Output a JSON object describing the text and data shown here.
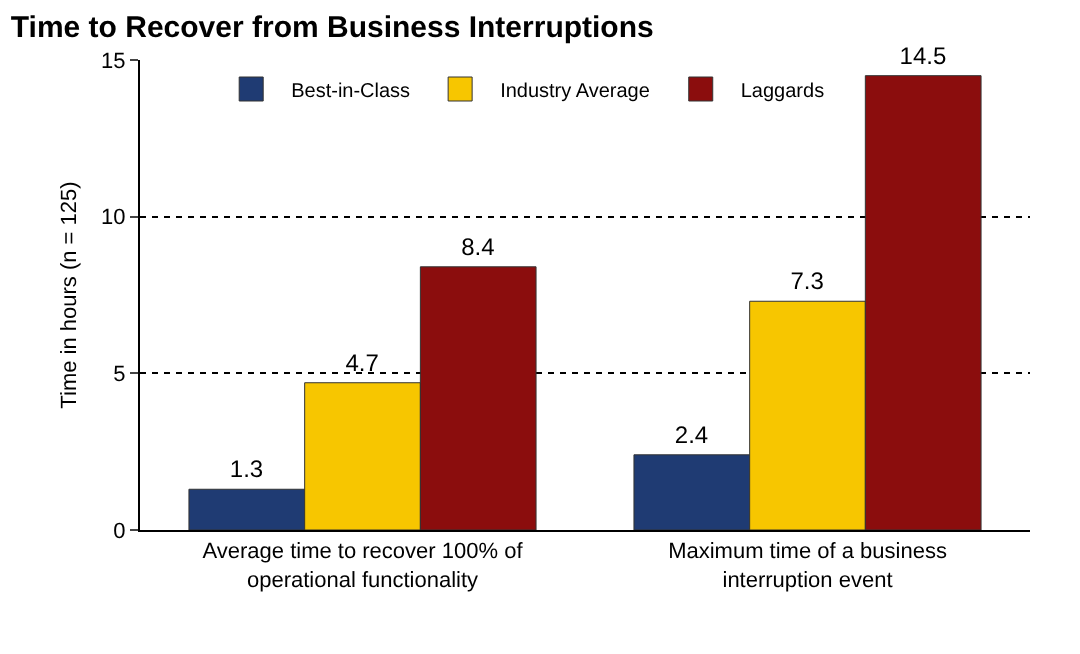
{
  "chart_data": {
    "type": "bar",
    "title": "Time to Recover from Business Interruptions",
    "ylabel": "Time in hours (n = 125)",
    "categories": [
      "Average time to recover 100% of operational functionality",
      "Maximum time of a business interruption event"
    ],
    "series": [
      {
        "name": "Best-in-Class",
        "color": "#1f3b73",
        "values": [
          1.3,
          2.4
        ]
      },
      {
        "name": "Industry Average",
        "color": "#f7c600",
        "values": [
          4.7,
          7.3
        ]
      },
      {
        "name": "Laggards",
        "color": "#8b0d0d",
        "values": [
          8.4,
          14.5
        ]
      }
    ],
    "ylim": [
      0,
      15
    ],
    "yticks": [
      0,
      5,
      10,
      15
    ],
    "grid": "y",
    "legend": "top",
    "data_labels": true
  }
}
